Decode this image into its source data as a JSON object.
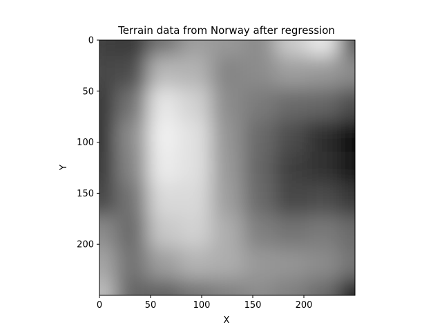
{
  "chart_data": {
    "type": "heatmap",
    "title": "Terrain data from Norway after regression",
    "xlabel": "X",
    "ylabel": "Y",
    "colormap": "gray",
    "xlim": [
      0,
      250
    ],
    "ylim": [
      250,
      0
    ],
    "x_ticks": [
      0,
      50,
      100,
      150,
      200
    ],
    "y_ticks": [
      0,
      50,
      100,
      150,
      200
    ],
    "grid": false,
    "legend": "none",
    "intensity_grid_note": "Approximate grayscale intensity (0 = black, 1 = white) read from the image, 9 rows (y = 0..250) x 9 cols (x = 0..250).",
    "intensity": [
      [
        0.25,
        0.22,
        0.45,
        0.62,
        0.6,
        0.55,
        0.8,
        0.92,
        0.35
      ],
      [
        0.28,
        0.3,
        0.72,
        0.7,
        0.52,
        0.55,
        0.62,
        0.6,
        0.55
      ],
      [
        0.22,
        0.45,
        0.9,
        0.82,
        0.55,
        0.48,
        0.42,
        0.4,
        0.3
      ],
      [
        0.2,
        0.55,
        0.94,
        0.88,
        0.58,
        0.42,
        0.3,
        0.18,
        0.05
      ],
      [
        0.22,
        0.52,
        0.92,
        0.88,
        0.6,
        0.4,
        0.25,
        0.2,
        0.08
      ],
      [
        0.28,
        0.45,
        0.85,
        0.85,
        0.62,
        0.42,
        0.28,
        0.3,
        0.22
      ],
      [
        0.55,
        0.42,
        0.78,
        0.82,
        0.68,
        0.5,
        0.45,
        0.48,
        0.42
      ],
      [
        0.65,
        0.45,
        0.62,
        0.7,
        0.68,
        0.6,
        0.58,
        0.55,
        0.45
      ],
      [
        0.75,
        0.4,
        0.38,
        0.45,
        0.5,
        0.55,
        0.5,
        0.42,
        0.1
      ]
    ]
  }
}
